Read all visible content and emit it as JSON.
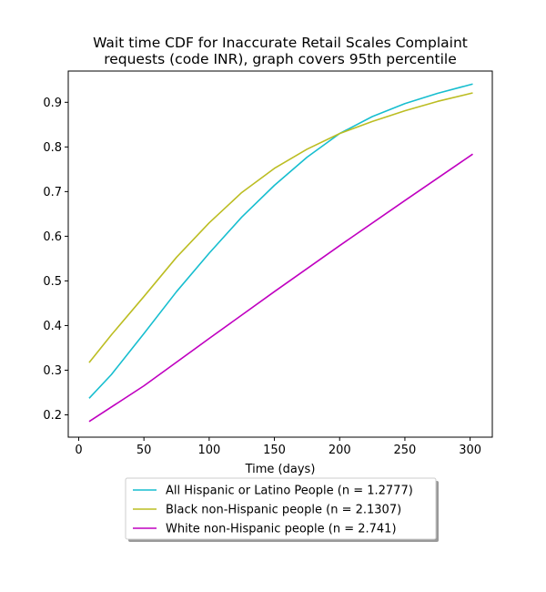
{
  "chart_data": {
    "type": "line",
    "title_lines": [
      "Wait time CDF for Inaccurate Retail Scales Complaint",
      "requests (code INR), graph covers 95th percentile"
    ],
    "xlabel": "Time (days)",
    "ylabel": "",
    "xlim": [
      -8,
      317
    ],
    "ylim": [
      0.15,
      0.97
    ],
    "xticks": [
      0,
      50,
      100,
      150,
      200,
      250,
      300
    ],
    "yticks": [
      0.2,
      0.3,
      0.4,
      0.5,
      0.6,
      0.7,
      0.8,
      0.9
    ],
    "ytick_labels": [
      "0.2",
      "0.3",
      "0.4",
      "0.5",
      "0.6",
      "0.7",
      "0.8",
      "0.9"
    ],
    "grid": false,
    "legend_placement": "below plot, centered",
    "series": [
      {
        "name": "All Hispanic or Latino People (n = 1.2777)",
        "color": "#17becf",
        "x": [
          8,
          25,
          50,
          75,
          100,
          125,
          150,
          175,
          200,
          225,
          250,
          275,
          302
        ],
        "y": [
          0.237,
          0.29,
          0.382,
          0.476,
          0.562,
          0.643,
          0.714,
          0.777,
          0.83,
          0.868,
          0.897,
          0.92,
          0.941
        ]
      },
      {
        "name": "Black non-Hispanic people (n = 2.1307)",
        "color": "#bcbd22",
        "x": [
          8,
          25,
          50,
          75,
          100,
          125,
          150,
          175,
          200,
          225,
          250,
          275,
          302
        ],
        "y": [
          0.317,
          0.379,
          0.465,
          0.553,
          0.63,
          0.698,
          0.752,
          0.795,
          0.83,
          0.857,
          0.881,
          0.902,
          0.921
        ]
      },
      {
        "name": "White non-Hispanic people (n = 2.741)",
        "color": "#c000c0",
        "x": [
          8,
          50,
          100,
          150,
          200,
          250,
          302
        ],
        "y": [
          0.185,
          0.265,
          0.371,
          0.476,
          0.579,
          0.68,
          0.784
        ]
      }
    ]
  }
}
